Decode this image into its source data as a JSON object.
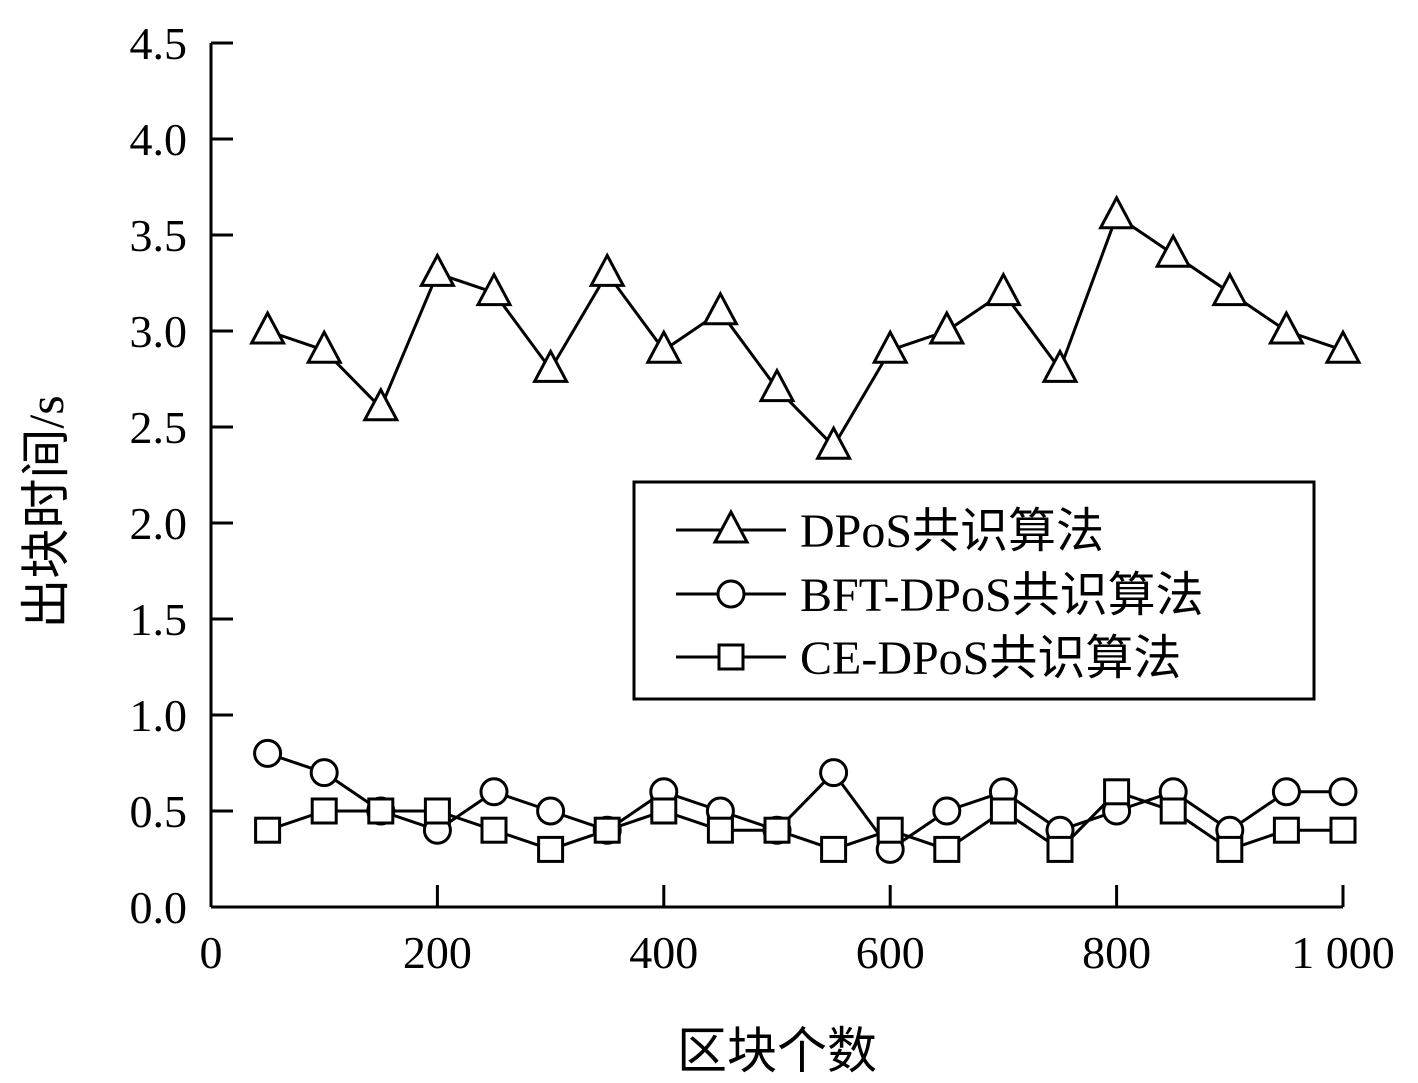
{
  "chart_data": {
    "type": "line",
    "xlabel": "区块个数",
    "ylabel": "出块时间/s",
    "xlim": [
      0,
      1000
    ],
    "ylim": [
      0,
      4.5
    ],
    "xticks": [
      0,
      200,
      400,
      600,
      800,
      1000
    ],
    "xtick_labels": [
      "0",
      "200",
      "400",
      "600",
      "800",
      "1 000"
    ],
    "yticks": [
      0,
      0.5,
      1.0,
      1.5,
      2.0,
      2.5,
      3.0,
      3.5,
      4.0,
      4.5
    ],
    "ytick_labels": [
      "0.0",
      "0.5",
      "1.0",
      "1.5",
      "2.0",
      "2.5",
      "3.0",
      "3.5",
      "4.0",
      "4.5"
    ],
    "grid": false,
    "legend_position": "center-right",
    "x": [
      50,
      100,
      150,
      200,
      250,
      300,
      350,
      400,
      450,
      500,
      550,
      600,
      650,
      700,
      750,
      800,
      850,
      900,
      950,
      1000
    ],
    "series": [
      {
        "name": "DPoS共识算法",
        "marker": "triangle",
        "color": "#000000",
        "values": [
          3.0,
          2.9,
          2.6,
          3.3,
          3.2,
          2.8,
          3.3,
          2.9,
          3.1,
          2.7,
          2.4,
          2.9,
          3.0,
          3.2,
          2.8,
          3.6,
          3.4,
          3.2,
          3.0,
          2.9
        ]
      },
      {
        "name": "BFT-DPoS共识算法",
        "marker": "circle",
        "color": "#000000",
        "values": [
          0.8,
          0.7,
          0.5,
          0.4,
          0.6,
          0.5,
          0.4,
          0.6,
          0.5,
          0.4,
          0.7,
          0.3,
          0.5,
          0.6,
          0.4,
          0.5,
          0.6,
          0.4,
          0.6,
          0.6
        ]
      },
      {
        "name": "CE-DPoS共识算法",
        "marker": "square",
        "color": "#000000",
        "values": [
          0.4,
          0.5,
          0.5,
          0.5,
          0.4,
          0.3,
          0.4,
          0.5,
          0.4,
          0.4,
          0.3,
          0.4,
          0.3,
          0.5,
          0.3,
          0.6,
          0.5,
          0.3,
          0.4,
          0.4
        ]
      }
    ]
  }
}
